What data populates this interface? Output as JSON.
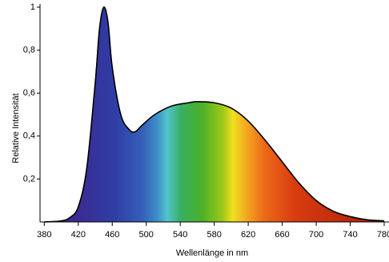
{
  "chart_data": {
    "type": "area",
    "x_label": "Wellenlänge in nm",
    "y_label": "Relative Intensität",
    "x": [
      380,
      400,
      410,
      420,
      430,
      440,
      445,
      450,
      455,
      460,
      470,
      480,
      487,
      495,
      510,
      530,
      550,
      560,
      580,
      600,
      620,
      640,
      660,
      680,
      700,
      720,
      740,
      760,
      780
    ],
    "values": [
      0,
      0.005,
      0.02,
      0.07,
      0.25,
      0.65,
      0.9,
      1.0,
      0.93,
      0.72,
      0.5,
      0.43,
      0.42,
      0.45,
      0.5,
      0.54,
      0.555,
      0.56,
      0.555,
      0.53,
      0.47,
      0.38,
      0.28,
      0.18,
      0.1,
      0.05,
      0.025,
      0.01,
      0.005
    ],
    "color": "#000000",
    "xlim": [
      375,
      780
    ],
    "xticks": [
      380,
      420,
      460,
      500,
      540,
      580,
      620,
      660,
      700,
      740,
      780
    ],
    "ylim": [
      0,
      1
    ],
    "yticks": [
      {
        "value": 0.2,
        "label": "0,2"
      },
      {
        "value": 0.4,
        "label": "0,4"
      },
      {
        "value": 0.6,
        "label": "0,6"
      },
      {
        "value": 0.8,
        "label": "0,8"
      },
      1
    ]
  }
}
